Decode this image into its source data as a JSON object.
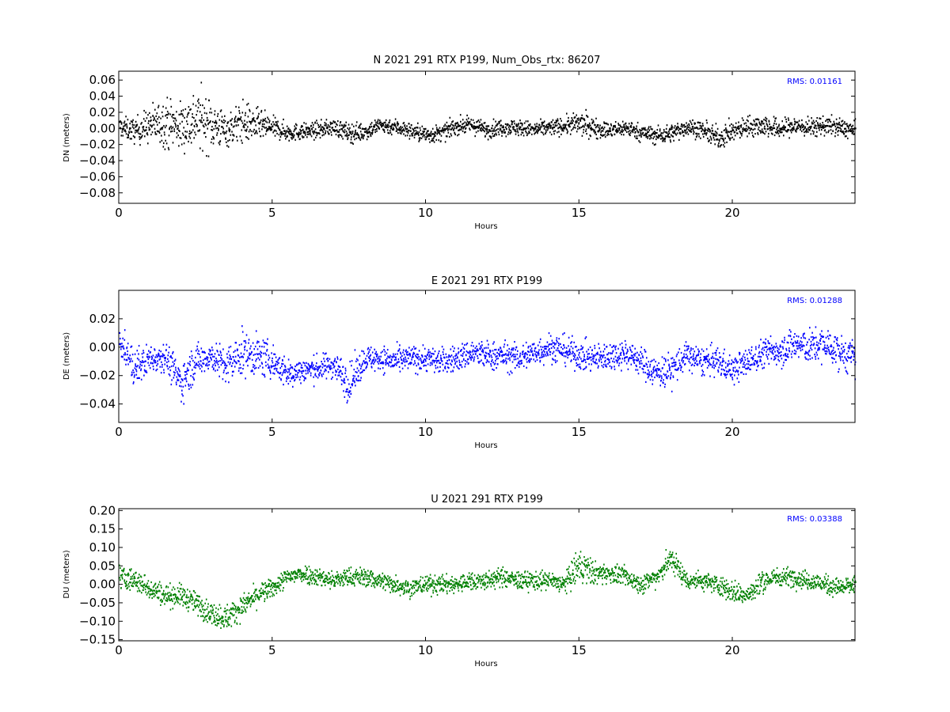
{
  "chart_data": [
    {
      "type": "scatter",
      "title": "N 2021 291 RTX  P199, Num_Obs_rtx: 86207",
      "xlabel": "Hours",
      "ylabel": "DN (meters)",
      "xlim": [
        0,
        24
      ],
      "ylim": [
        -0.093,
        0.071
      ],
      "xticks": [
        0,
        5,
        10,
        15,
        20
      ],
      "yticks": [
        -0.08,
        -0.06,
        -0.04,
        -0.02,
        0.0,
        0.02,
        0.04,
        0.06
      ],
      "ytick_labels": [
        "−0.08",
        "−0.06",
        "−0.04",
        "−0.02",
        "0.00",
        "0.02",
        "0.04",
        "0.06"
      ],
      "annotation": "RMS:  0.01161",
      "annotation_color": "#0000ff",
      "series_color": "#000000",
      "rms": 0.01161,
      "grid": false,
      "series": [
        {
          "x": [
            0,
            0.5,
            1,
            1.5,
            2,
            2.5,
            3,
            3.5,
            4,
            4.5,
            5,
            5.5,
            6,
            6.5,
            7,
            7.5,
            8,
            8.5,
            9,
            9.5,
            10,
            10.5,
            11,
            11.5,
            12,
            12.5,
            13,
            13.5,
            14,
            14.5,
            15,
            15.5,
            16,
            16.5,
            17,
            17.5,
            18,
            18.5,
            19,
            19.5,
            20,
            20.5,
            21,
            21.5,
            22,
            22.5,
            23,
            23.5,
            24
          ],
          "y": [
            0.002,
            -0.003,
            0.004,
            0.008,
            0.002,
            0.012,
            0.006,
            -0.002,
            0.008,
            0.004,
            0.001,
            -0.005,
            -0.004,
            -0.002,
            0.002,
            -0.006,
            -0.004,
            0.004,
            0.002,
            -0.003,
            -0.008,
            -0.006,
            0.003,
            0.004,
            -0.002,
            0.002,
            0.001,
            -0.002,
            0.001,
            0.003,
            0.006,
            0.001,
            -0.003,
            0.001,
            -0.005,
            -0.009,
            -0.006,
            0.002,
            -0.002,
            -0.012,
            -0.004,
            0.003,
            0.004,
            -0.001,
            0.003,
            0.001,
            0.004,
            0.001,
            -0.003
          ],
          "spread": [
            0.012,
            0.015,
            0.022,
            0.03,
            0.03,
            0.038,
            0.032,
            0.02,
            0.026,
            0.02,
            0.013,
            0.011,
            0.01,
            0.01,
            0.01,
            0.012,
            0.011,
            0.01,
            0.01,
            0.01,
            0.011,
            0.01,
            0.01,
            0.01,
            0.01,
            0.01,
            0.01,
            0.01,
            0.01,
            0.01,
            0.015,
            0.012,
            0.01,
            0.01,
            0.01,
            0.011,
            0.011,
            0.011,
            0.01,
            0.014,
            0.013,
            0.012,
            0.014,
            0.012,
            0.012,
            0.011,
            0.012,
            0.011,
            0.011
          ]
        }
      ]
    },
    {
      "type": "scatter",
      "title": "E 2021 291 RTX  P199",
      "xlabel": "Hours",
      "ylabel": "DE (meters)",
      "xlim": [
        0,
        24
      ],
      "ylim": [
        -0.053,
        0.04
      ],
      "xticks": [
        0,
        5,
        10,
        15,
        20
      ],
      "yticks": [
        -0.04,
        -0.02,
        0.0,
        0.02
      ],
      "ytick_labels": [
        "−0.04",
        "−0.02",
        "0.00",
        "0.02"
      ],
      "annotation": "RMS:  0.01288",
      "annotation_color": "#0000ff",
      "series_color": "#0000ff",
      "rms": 0.01288,
      "grid": false,
      "series": [
        {
          "x": [
            0,
            0.5,
            1,
            1.5,
            2,
            2.5,
            3,
            3.5,
            4,
            4.5,
            5,
            5.5,
            6,
            6.5,
            7,
            7.5,
            8,
            8.5,
            9,
            9.5,
            10,
            10.5,
            11,
            11.5,
            12,
            12.5,
            13,
            13.5,
            14,
            14.5,
            15,
            15.5,
            16,
            16.5,
            17,
            17.5,
            18,
            18.5,
            19,
            19.5,
            20,
            20.5,
            21,
            21.5,
            22,
            22.5,
            23,
            23.5,
            24
          ],
          "y": [
            0.004,
            -0.015,
            -0.008,
            -0.006,
            -0.025,
            -0.01,
            -0.006,
            -0.014,
            -0.004,
            -0.006,
            -0.01,
            -0.019,
            -0.016,
            -0.015,
            -0.012,
            -0.026,
            -0.008,
            -0.008,
            -0.01,
            -0.008,
            -0.008,
            -0.01,
            -0.008,
            -0.004,
            -0.006,
            -0.006,
            -0.008,
            -0.004,
            0.0,
            -0.002,
            -0.006,
            -0.008,
            -0.006,
            -0.004,
            -0.01,
            -0.018,
            -0.016,
            -0.006,
            -0.01,
            -0.01,
            -0.016,
            -0.01,
            -0.004,
            -0.002,
            0.002,
            0.0,
            0.002,
            -0.004,
            -0.008
          ],
          "spread": [
            0.008,
            0.014,
            0.01,
            0.01,
            0.014,
            0.012,
            0.01,
            0.014,
            0.016,
            0.014,
            0.012,
            0.01,
            0.009,
            0.009,
            0.009,
            0.014,
            0.009,
            0.009,
            0.009,
            0.009,
            0.009,
            0.009,
            0.009,
            0.01,
            0.01,
            0.01,
            0.01,
            0.01,
            0.01,
            0.01,
            0.01,
            0.01,
            0.01,
            0.01,
            0.01,
            0.011,
            0.012,
            0.01,
            0.01,
            0.01,
            0.01,
            0.01,
            0.01,
            0.011,
            0.012,
            0.012,
            0.012,
            0.012,
            0.012
          ]
        }
      ]
    },
    {
      "type": "scatter",
      "title": "U 2021 291 RTX  P199",
      "xlabel": "Hours",
      "ylabel": "DU (meters)",
      "xlim": [
        0,
        24
      ],
      "ylim": [
        -0.153,
        0.205
      ],
      "xticks": [
        0,
        5,
        10,
        15,
        20
      ],
      "yticks": [
        -0.15,
        -0.1,
        -0.05,
        0.0,
        0.05,
        0.1,
        0.15,
        0.2
      ],
      "ytick_labels": [
        "−0.15",
        "−0.10",
        "−0.05",
        "0.00",
        "0.05",
        "0.10",
        "0.15",
        "0.20"
      ],
      "annotation": "RMS:  0.03388",
      "annotation_color": "#0000ff",
      "series_color": "#008000",
      "rms": 0.03388,
      "grid": false,
      "series": [
        {
          "x": [
            0,
            0.5,
            1,
            1.5,
            2,
            2.5,
            3,
            3.5,
            4,
            4.5,
            5,
            5.5,
            6,
            6.5,
            7,
            7.5,
            8,
            8.5,
            9,
            9.5,
            10,
            10.5,
            11,
            11.5,
            12,
            12.5,
            13,
            13.5,
            14,
            14.5,
            15,
            15.5,
            16,
            16.5,
            17,
            17.5,
            18,
            18.5,
            19,
            19.5,
            20,
            20.5,
            21,
            21.5,
            22,
            22.5,
            23,
            23.5,
            24
          ],
          "y": [
            0.02,
            0.01,
            -0.01,
            -0.03,
            -0.03,
            -0.05,
            -0.08,
            -0.09,
            -0.06,
            -0.03,
            -0.01,
            0.02,
            0.03,
            0.02,
            0.01,
            0.02,
            0.02,
            0.01,
            0.0,
            -0.01,
            0.0,
            0.0,
            0.0,
            0.01,
            0.01,
            0.02,
            0.01,
            0.01,
            0.01,
            0.0,
            0.05,
            0.03,
            0.03,
            0.02,
            0.0,
            0.02,
            0.07,
            0.01,
            0.01,
            0.0,
            -0.02,
            -0.03,
            0.01,
            0.02,
            0.02,
            0.01,
            0.0,
            -0.01,
            0.0
          ],
          "spread": [
            0.035,
            0.03,
            0.03,
            0.03,
            0.03,
            0.03,
            0.03,
            0.035,
            0.03,
            0.03,
            0.025,
            0.025,
            0.025,
            0.025,
            0.025,
            0.025,
            0.025,
            0.025,
            0.025,
            0.025,
            0.025,
            0.025,
            0.025,
            0.025,
            0.025,
            0.025,
            0.025,
            0.025,
            0.025,
            0.025,
            0.05,
            0.03,
            0.025,
            0.025,
            0.025,
            0.025,
            0.035,
            0.025,
            0.025,
            0.025,
            0.03,
            0.03,
            0.03,
            0.025,
            0.025,
            0.025,
            0.025,
            0.025,
            0.025
          ]
        }
      ]
    }
  ]
}
